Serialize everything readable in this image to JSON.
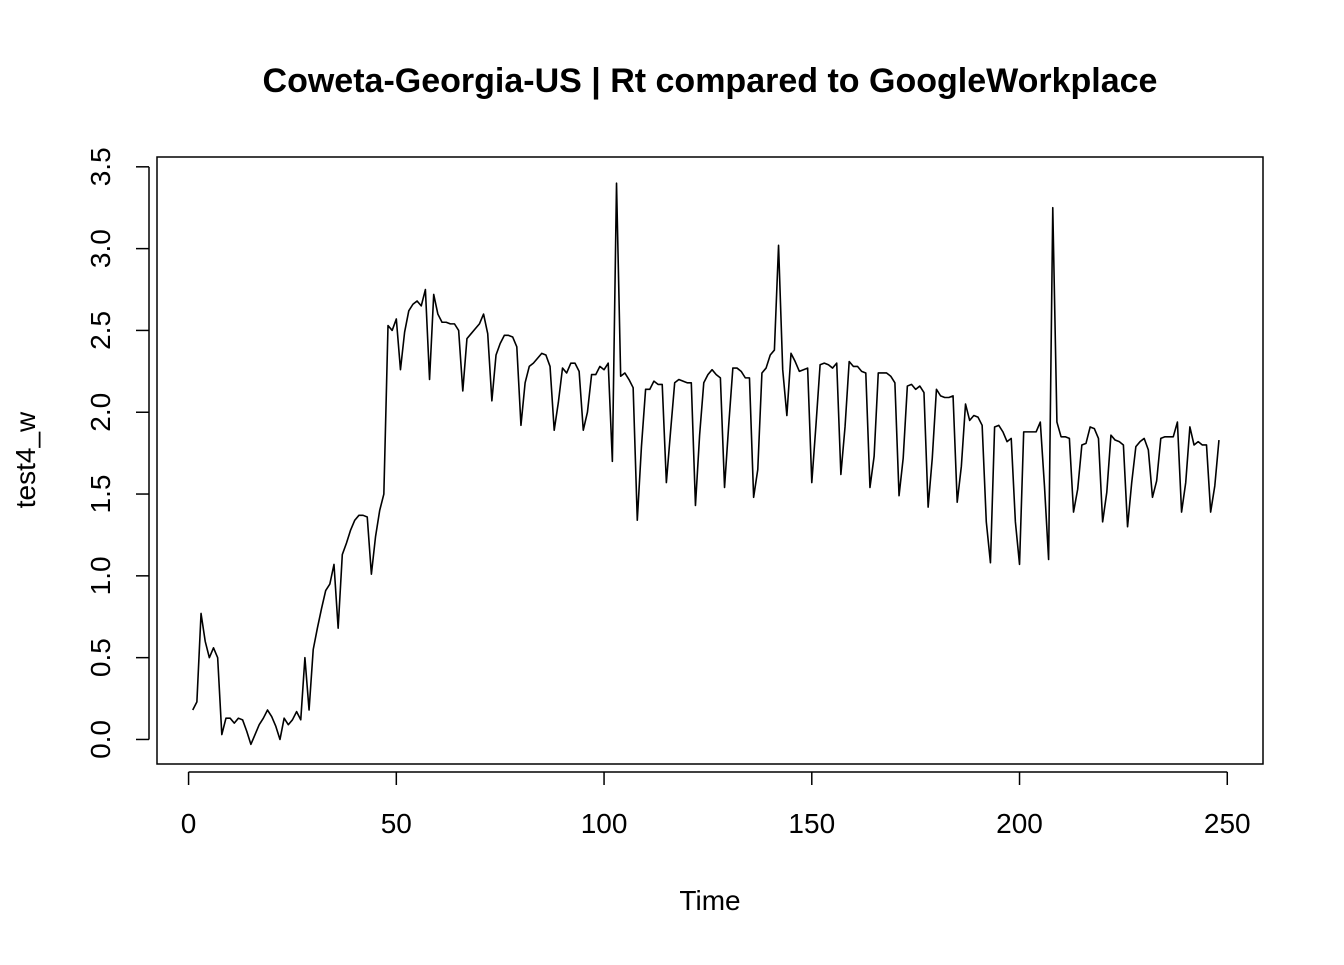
{
  "chart_data": {
    "type": "line",
    "title": "Coweta-Georgia-US | Rt compared to GoogleWorkplace",
    "xlabel": "Time",
    "ylabel": "test4_w",
    "xlim": [
      -7.6,
      258.6
    ],
    "ylim": [
      -0.15,
      3.56
    ],
    "x_ticks": [
      0,
      50,
      100,
      150,
      200,
      250
    ],
    "x_tick_labels": [
      "0",
      "50",
      "100",
      "150",
      "200",
      "250"
    ],
    "y_ticks": [
      0.0,
      0.5,
      1.0,
      1.5,
      2.0,
      2.5,
      3.0,
      3.5
    ],
    "y_tick_labels": [
      "0.0",
      "0.5",
      "1.0",
      "1.5",
      "2.0",
      "2.5",
      "3.0",
      "3.5"
    ],
    "grid": false,
    "legend": "none",
    "line_color": "#000000",
    "x_start": 1,
    "series": [
      {
        "values": [
          0.18,
          0.23,
          0.77,
          0.6,
          0.5,
          0.56,
          0.5,
          0.03,
          0.13,
          0.13,
          0.1,
          0.13,
          0.12,
          0.05,
          -0.03,
          0.03,
          0.09,
          0.13,
          0.18,
          0.14,
          0.08,
          0.0,
          0.13,
          0.09,
          0.12,
          0.17,
          0.12,
          0.5,
          0.18,
          0.55,
          0.68,
          0.8,
          0.91,
          0.95,
          1.07,
          0.68,
          1.13,
          1.2,
          1.28,
          1.34,
          1.37,
          1.37,
          1.36,
          1.01,
          1.24,
          1.4,
          1.5,
          2.53,
          2.5,
          2.57,
          2.26,
          2.49,
          2.62,
          2.66,
          2.68,
          2.65,
          2.75,
          2.2,
          2.72,
          2.6,
          2.55,
          2.55,
          2.54,
          2.54,
          2.5,
          2.13,
          2.45,
          2.48,
          2.51,
          2.54,
          2.6,
          2.48,
          2.07,
          2.35,
          2.42,
          2.47,
          2.47,
          2.46,
          2.4,
          1.92,
          2.18,
          2.28,
          2.3,
          2.33,
          2.36,
          2.35,
          2.28,
          1.89,
          2.06,
          2.27,
          2.24,
          2.3,
          2.3,
          2.25,
          1.89,
          2.0,
          2.23,
          2.23,
          2.28,
          2.26,
          2.3,
          1.7,
          3.4,
          2.22,
          2.24,
          2.2,
          2.15,
          1.34,
          1.79,
          2.14,
          2.14,
          2.19,
          2.17,
          2.17,
          1.57,
          1.88,
          2.18,
          2.2,
          2.19,
          2.18,
          2.18,
          1.43,
          1.86,
          2.18,
          2.23,
          2.26,
          2.23,
          2.21,
          1.54,
          1.92,
          2.27,
          2.27,
          2.25,
          2.21,
          2.21,
          1.48,
          1.65,
          2.24,
          2.27,
          2.35,
          2.38,
          3.02,
          2.26,
          1.98,
          2.36,
          2.31,
          2.25,
          2.26,
          2.27,
          1.57,
          1.92,
          2.29,
          2.3,
          2.29,
          2.27,
          2.3,
          1.62,
          1.91,
          2.31,
          2.28,
          2.28,
          2.25,
          2.24,
          1.54,
          1.73,
          2.24,
          2.24,
          2.24,
          2.22,
          2.18,
          1.49,
          1.72,
          2.16,
          2.17,
          2.14,
          2.16,
          2.12,
          1.42,
          1.72,
          2.14,
          2.1,
          2.09,
          2.09,
          2.1,
          1.45,
          1.67,
          2.05,
          1.95,
          1.98,
          1.97,
          1.92,
          1.33,
          1.08,
          1.91,
          1.92,
          1.88,
          1.82,
          1.84,
          1.33,
          1.07,
          1.88,
          1.88,
          1.88,
          1.88,
          1.94,
          1.55,
          1.1,
          3.25,
          1.94,
          1.85,
          1.85,
          1.84,
          1.39,
          1.53,
          1.8,
          1.81,
          1.91,
          1.9,
          1.84,
          1.33,
          1.51,
          1.86,
          1.83,
          1.82,
          1.8,
          1.3,
          1.57,
          1.79,
          1.82,
          1.84,
          1.77,
          1.48,
          1.58,
          1.84,
          1.85,
          1.85,
          1.85,
          1.94,
          1.39,
          1.57,
          1.91,
          1.8,
          1.82,
          1.8,
          1.8,
          1.39,
          1.55,
          1.83
        ]
      }
    ]
  }
}
